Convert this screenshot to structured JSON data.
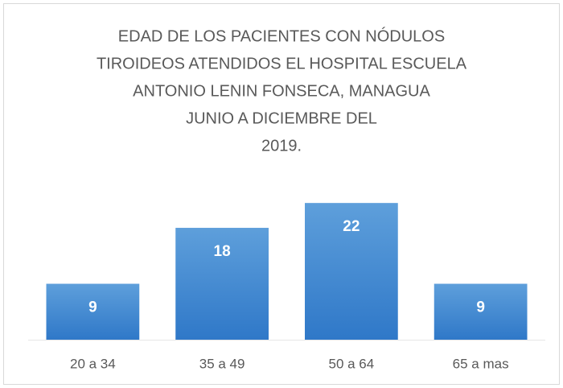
{
  "chart_data": {
    "type": "bar",
    "title": [
      "EDAD DE LOS PACIENTES CON NÓDULOS",
      "TIROIDEOS  ATENDIDOS EL HOSPITAL ESCUELA",
      "ANTONIO LENIN FONSECA, MANAGUA",
      "JUNIO A DICIEMBRE  DEL",
      "2019."
    ],
    "categories": [
      "20 a 34",
      "35 a 49",
      "50 a 64",
      "65 a mas"
    ],
    "values": [
      9,
      18,
      22,
      9
    ],
    "color": "#4a8fd4",
    "ylim": [
      0,
      25
    ]
  }
}
